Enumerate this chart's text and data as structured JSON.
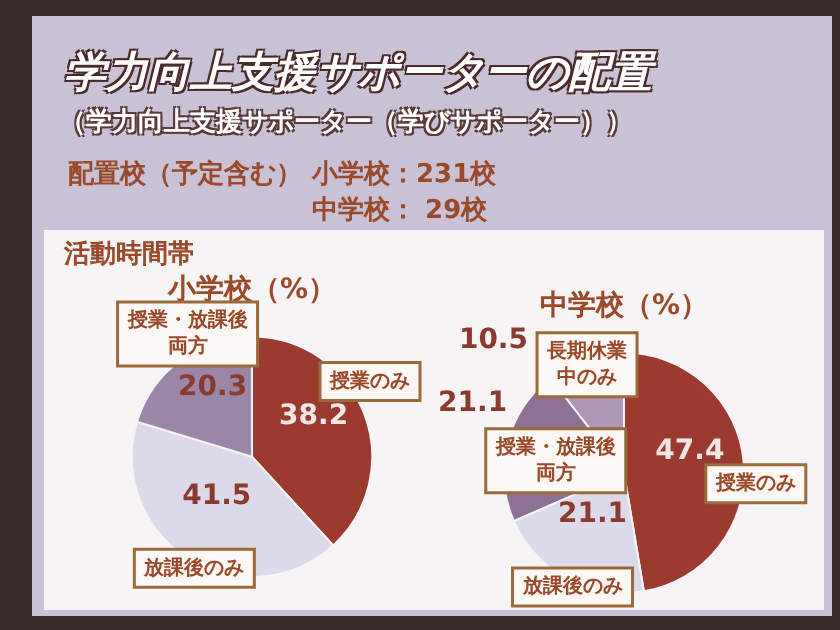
{
  "chart_data": [
    {
      "type": "other",
      "title": "学力向上支援サポーターの配置",
      "subtitle": "（学力向上支援サポーター（学びサポーター））",
      "annotations": [
        "配置校（予定含む）",
        "小学校：231校",
        "中学校： 29校"
      ]
    },
    {
      "type": "pie",
      "title": "小学校（%）",
      "annotations": [
        "活動時間帯"
      ],
      "categories": [
        "授業のみ",
        "放課後のみ",
        "授業・放課後両方"
      ],
      "values": [
        38.2,
        41.5,
        20.3
      ],
      "colors": [
        "#9b3a2e",
        "#dcdaea",
        "#9a86a6"
      ],
      "data_labels": true,
      "legend": false
    },
    {
      "type": "pie",
      "title": "中学校（%）",
      "categories": [
        "授業のみ",
        "放課後のみ",
        "授業・放課後両方",
        "長期休業中のみ"
      ],
      "values": [
        47.4,
        21.1,
        21.1,
        10.5
      ],
      "colors": [
        "#9b3a2e",
        "#dcdaea",
        "#8e7296",
        "#ad96b6"
      ],
      "data_labels": true,
      "legend": false
    }
  ]
}
